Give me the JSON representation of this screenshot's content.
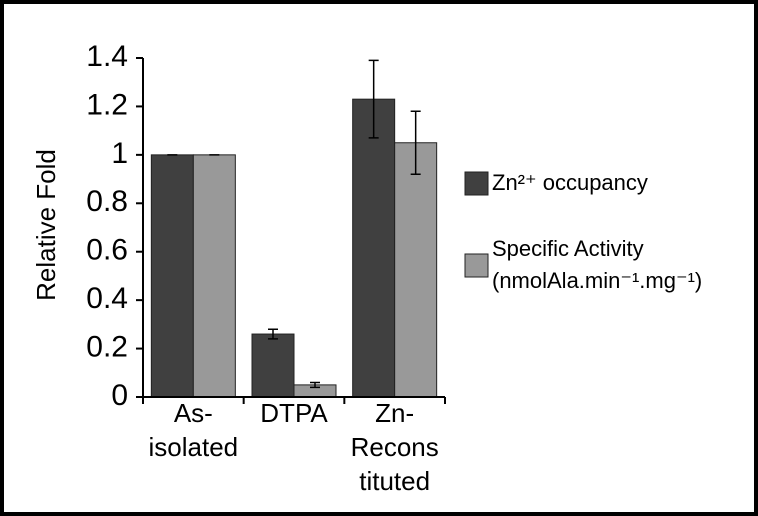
{
  "chart_data": {
    "type": "bar",
    "y_label": "Relative Fold",
    "categories": [
      [
        "As-",
        "isolated"
      ],
      [
        "DTPA"
      ],
      [
        "Zn-",
        "Recons",
        "tituted"
      ]
    ],
    "series": [
      {
        "name": [
          "Zn²⁺ occupancy"
        ],
        "color": "#404040",
        "values": [
          1,
          0.26,
          1.23
        ],
        "errors": [
          0,
          0.02,
          0.16
        ]
      },
      {
        "name": [
          "Specific Activity",
          "(nmolAla.min⁻¹.mg⁻¹)"
        ],
        "color": "#999999",
        "values": [
          1,
          0.05,
          1.05
        ],
        "errors": [
          0,
          0.01,
          0.13
        ]
      }
    ],
    "ylim": [
      0,
      1.4
    ],
    "yticks": [
      0,
      0.2,
      0.4,
      0.6,
      0.8,
      1,
      1.2,
      1.4
    ],
    "grid": false
  }
}
